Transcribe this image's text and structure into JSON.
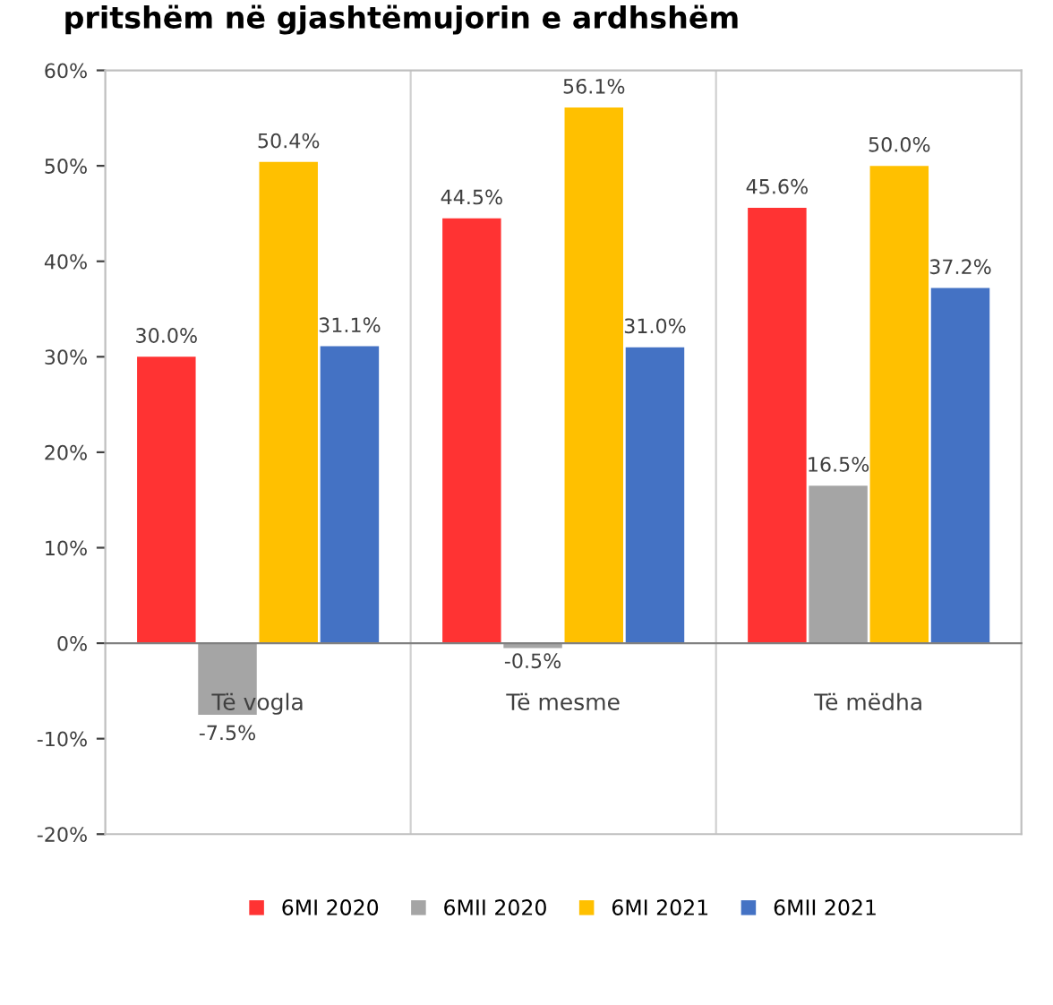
{
  "chart_data": {
    "type": "bar",
    "title": "pritshëm në gjashtëmujorin e ardhshëm",
    "categories": [
      "Të vogla",
      "Të mesme",
      "Të mëdha"
    ],
    "series": [
      {
        "name": "6MI 2020",
        "color": "#ff3333",
        "values": [
          30.0,
          44.5,
          45.6
        ],
        "value_labels": [
          "30.0%",
          "44.5%",
          "45.6%"
        ]
      },
      {
        "name": "6MII 2020",
        "color": "#a5a5a5",
        "values": [
          -7.5,
          -0.5,
          16.5
        ],
        "value_labels": [
          "-7.5%",
          "-0.5%",
          "16.5%"
        ]
      },
      {
        "name": "6MI 2021",
        "color": "#ffc000",
        "values": [
          50.4,
          56.1,
          50.0
        ],
        "value_labels": [
          "50.4%",
          "56.1%",
          "50.0%"
        ]
      },
      {
        "name": "6MII 2021",
        "color": "#4472c4",
        "values": [
          31.1,
          31.0,
          37.2
        ],
        "value_labels": [
          "31.1%",
          "31.0%",
          "37.2%"
        ]
      }
    ],
    "ylim": [
      -20,
      60
    ],
    "yticks": [
      {
        "value": -20,
        "label": "-20%"
      },
      {
        "value": -10,
        "label": "-10%"
      },
      {
        "value": 0,
        "label": "0%"
      },
      {
        "value": 10,
        "label": "10%"
      },
      {
        "value": 20,
        "label": "20%"
      },
      {
        "value": 30,
        "label": "30%"
      },
      {
        "value": 40,
        "label": "40%"
      },
      {
        "value": 50,
        "label": "50%"
      },
      {
        "value": 60,
        "label": "60%"
      }
    ],
    "legend": "bottom"
  }
}
